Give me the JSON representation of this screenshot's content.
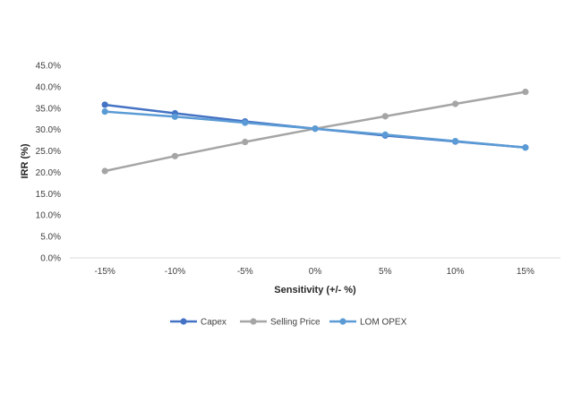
{
  "chart_data": {
    "type": "line",
    "categories": [
      "-15%",
      "-10%",
      "-5%",
      "0%",
      "5%",
      "10%",
      "15%"
    ],
    "series": [
      {
        "name": "Capex",
        "color": "#4472C4",
        "values": [
          35.8,
          33.8,
          31.9,
          30.2,
          28.6,
          27.2,
          25.8
        ]
      },
      {
        "name": "Selling Price",
        "color": "#A5A5A5",
        "values": [
          20.3,
          23.8,
          27.1,
          30.2,
          33.1,
          36.0,
          38.8
        ]
      },
      {
        "name": "LOM OPEX",
        "color": "#5B9BD5",
        "values": [
          34.2,
          33.0,
          31.6,
          30.2,
          28.8,
          27.3,
          25.8
        ]
      }
    ],
    "yticks": [
      "0.0%",
      "5.0%",
      "10.0%",
      "15.0%",
      "20.0%",
      "25.0%",
      "30.0%",
      "35.0%",
      "40.0%",
      "45.0%"
    ],
    "ylim": [
      0,
      45
    ],
    "xlabel": "Sensitivity (+/- %)",
    "ylabel": "IRR (%)",
    "grid": false,
    "legend": "bottom"
  }
}
